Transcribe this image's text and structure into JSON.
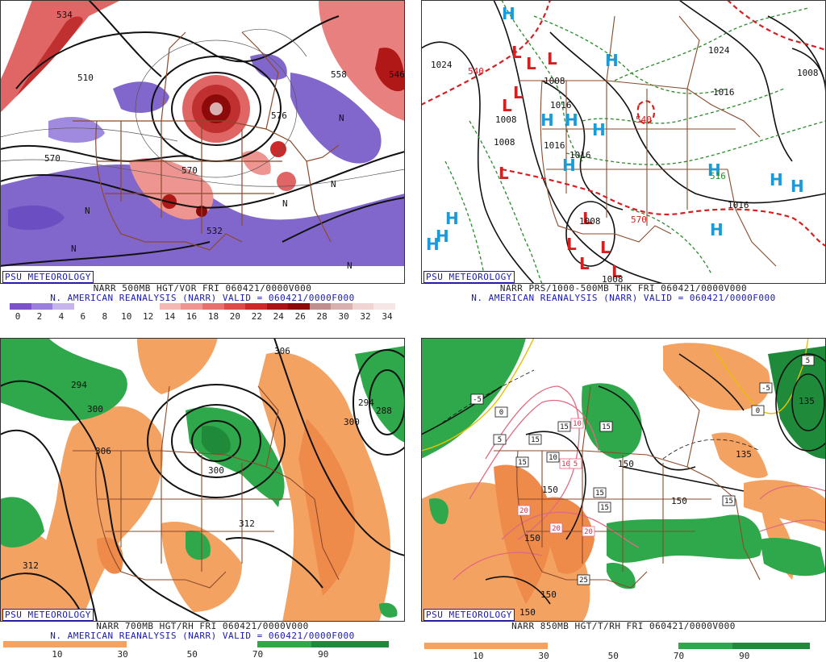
{
  "badge": "PSU METEOROLOGY",
  "panels": {
    "p1": {
      "caption1": "NARR 500MB HGT/VOR FRI 060421/0000V000",
      "caption2": "N. AMERICAN REANALYSIS (NARR) VALID = 060421/0000F000",
      "colorbar_labels": [
        "0",
        "2",
        "4",
        "6",
        "8",
        "10",
        "12",
        "14",
        "16",
        "18",
        "20",
        "22",
        "24",
        "26",
        "28",
        "30",
        "32",
        "34"
      ],
      "contour_labels": [
        "534",
        "570",
        "576",
        "532",
        "546",
        "558",
        "510",
        "570"
      ],
      "region_labels": [
        "N",
        "N",
        "N",
        "N",
        "N",
        "N"
      ]
    },
    "p2": {
      "caption1": "NARR PRS/1000-500MB THK FRI 060421/0000V000",
      "caption2": "N. AMERICAN REANALYSIS (NARR) VALID = 060421/0000F000",
      "highs": [
        "H",
        "H",
        "H",
        "H",
        "H",
        "H",
        "H",
        "H",
        "H",
        "H",
        "H",
        "H",
        "H"
      ],
      "lows": [
        "L",
        "L",
        "L",
        "L",
        "L",
        "L",
        "L",
        "L",
        "L",
        "L",
        "L"
      ],
      "isobar_labels": [
        "1024",
        "1024",
        "1008",
        "1016",
        "1008",
        "1016",
        "1008",
        "1008",
        "1016",
        "1008",
        "1016",
        "1016",
        "1008"
      ],
      "thickness_labels": [
        "540",
        "570",
        "540",
        "516"
      ]
    },
    "p3": {
      "caption1": "NARR 700MB HGT/RH FRI 060421/0000V000",
      "caption2": "N. AMERICAN REANALYSIS (NARR) VALID = 060421/0000F000",
      "colorbar_labels": [
        "10",
        "30",
        "50",
        "70",
        "90"
      ],
      "contour_labels": [
        "306",
        "294",
        "300",
        "306",
        "300",
        "312",
        "312",
        "294",
        "288",
        "300"
      ]
    },
    "p4": {
      "caption1": "NARR 850MB HGT/T/RH FRI 060421/0000V000",
      "colorbar_labels": [
        "10",
        "30",
        "50",
        "70",
        "90"
      ],
      "temp_boxes": [
        "-5",
        "0",
        "5",
        "15",
        "15",
        "15",
        "10",
        "10",
        "15",
        "15",
        "20",
        "20",
        "20",
        "15",
        "25",
        "5",
        "-5",
        "0",
        "15",
        "10",
        "5"
      ],
      "height_labels": [
        "150",
        "150",
        "150",
        "150",
        "150",
        "135",
        "135",
        "150"
      ]
    }
  },
  "colors": {
    "vort_scale": [
      "#7b52c8",
      "#9a7fdc",
      "#c6b5ec",
      "#ffffff",
      "#ffffff",
      "#ffffff",
      "#ffffff",
      "#f3b7b4",
      "#ee9591",
      "#e6706d",
      "#dd4a4a",
      "#cc2a2a",
      "#aa1414",
      "#8c0a0a",
      "#bf8f8f",
      "#d9b0b0",
      "#f0d4d4",
      "#f7e6e6"
    ],
    "rh_dry": "#f4a261",
    "rh_verydry": "#ee8a4a",
    "rh_moist": "#2ea84a",
    "rh_verymoist": "#1f8a3a",
    "border": "#8b4a2b",
    "caption_blue": "#1a1ab0"
  }
}
